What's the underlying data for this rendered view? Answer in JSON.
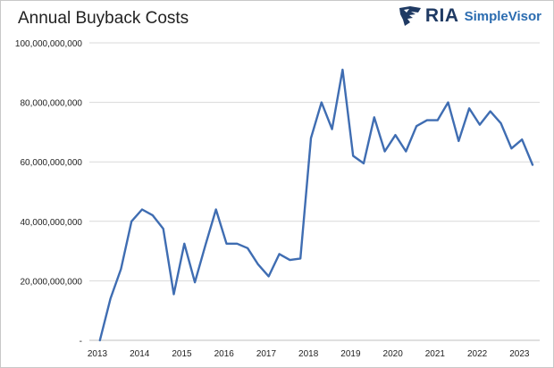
{
  "colors": {
    "line": "#3f6db2",
    "grid": "#d9d9d9",
    "axis": "#bfbfbf",
    "text": "#222222",
    "brand_dark": "#1f3a63",
    "brand_light": "#2b6cb0"
  },
  "logo": {
    "icon": "eagle-icon",
    "brand": "RIA",
    "product": "SimpleVisor"
  },
  "chart_data": {
    "type": "line",
    "title": "Annual Buyback Costs",
    "xlabel": "",
    "ylabel": "",
    "ylim": [
      0,
      100000000000
    ],
    "xlim": [
      2013,
      2023.67
    ],
    "grid": "horizontal",
    "legend": "none",
    "y_ticks": [
      {
        "value": 0,
        "label": "-"
      },
      {
        "value": 20000000000,
        "label": "20,000,000,000"
      },
      {
        "value": 40000000000,
        "label": "40,000,000,000"
      },
      {
        "value": 60000000000,
        "label": "60,000,000,000"
      },
      {
        "value": 80000000000,
        "label": "80,000,000,000"
      },
      {
        "value": 100000000000,
        "label": "100,000,000,000"
      }
    ],
    "x_ticks": [
      {
        "value": 2013,
        "label": "2013"
      },
      {
        "value": 2014,
        "label": "2014"
      },
      {
        "value": 2015,
        "label": "2015"
      },
      {
        "value": 2016,
        "label": "2016"
      },
      {
        "value": 2017,
        "label": "2017"
      },
      {
        "value": 2018,
        "label": "2018"
      },
      {
        "value": 2019,
        "label": "2019"
      },
      {
        "value": 2020,
        "label": "2020"
      },
      {
        "value": 2021,
        "label": "2021"
      },
      {
        "value": 2022,
        "label": "2022"
      },
      {
        "value": 2023,
        "label": "2023"
      }
    ],
    "series": [
      {
        "x": [
          2013.25,
          2013.5,
          2013.75,
          2014.0,
          2014.25,
          2014.5,
          2014.75,
          2015.0,
          2015.25,
          2015.5,
          2015.75,
          2016.0,
          2016.25,
          2016.5,
          2016.75,
          2017.0,
          2017.25,
          2017.5,
          2017.75,
          2018.0,
          2018.25,
          2018.5,
          2018.75,
          2019.0,
          2019.25,
          2019.5,
          2019.75,
          2020.0,
          2020.25,
          2020.5,
          2020.75,
          2021.0,
          2021.25,
          2021.5,
          2021.75,
          2022.0,
          2022.25,
          2022.5,
          2022.75,
          2023.0,
          2023.25,
          2023.5
        ],
        "values": [
          0,
          14000000000,
          24000000000,
          40000000000,
          44000000000,
          42000000000,
          37500000000,
          15500000000,
          32500000000,
          19500000000,
          32000000000,
          44000000000,
          32500000000,
          32500000000,
          31000000000,
          25500000000,
          21500000000,
          29000000000,
          27000000000,
          27500000000,
          68000000000,
          80000000000,
          71000000000,
          91000000000,
          62000000000,
          59500000000,
          75000000000,
          63500000000,
          69000000000,
          63500000000,
          72000000000,
          74000000000,
          74000000000,
          80000000000,
          67000000000,
          78000000000,
          72500000000,
          77000000000,
          73000000000,
          64500000000,
          67500000000,
          59000000000
        ]
      }
    ]
  }
}
